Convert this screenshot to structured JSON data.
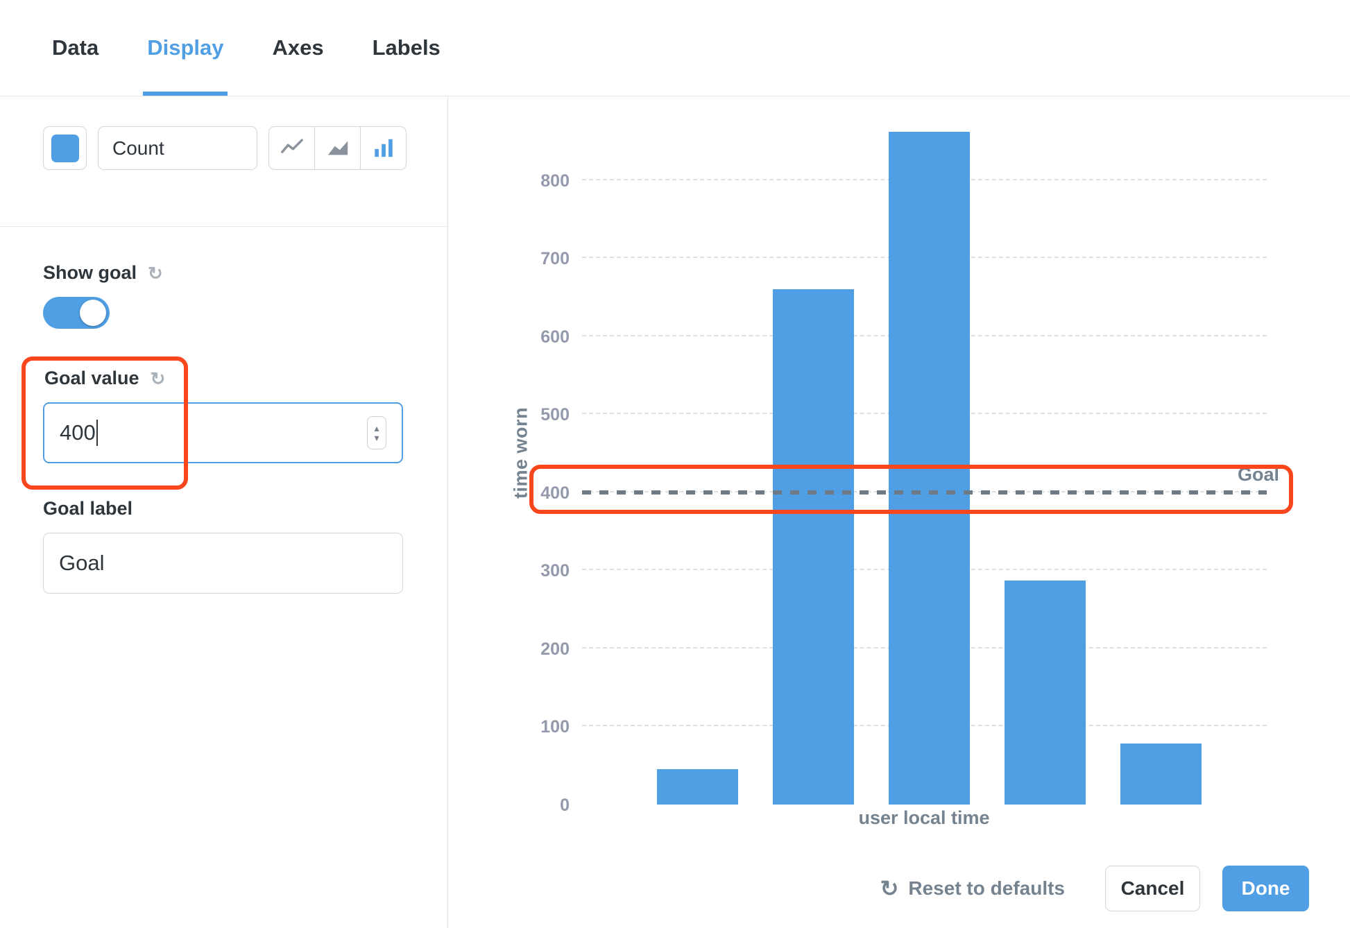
{
  "tabs": {
    "items": [
      {
        "label": "Data"
      },
      {
        "label": "Display"
      },
      {
        "label": "Axes"
      },
      {
        "label": "Labels"
      }
    ],
    "active": "Display"
  },
  "series": {
    "name": "Count",
    "chart_type_options": [
      "line",
      "area",
      "bar"
    ],
    "selected_chart_type": "bar"
  },
  "goal_settings": {
    "show_goal_label": "Show goal",
    "show_goal_enabled": true,
    "value_label": "Goal value",
    "value": "400",
    "label_label": "Goal label",
    "label_value": "Goal"
  },
  "icons": {
    "refresh": "↻",
    "stepper_up": "▴",
    "stepper_down": "▾"
  },
  "footer": {
    "reset": "Reset to defaults",
    "cancel": "Cancel",
    "done": "Done"
  },
  "colors": {
    "accent": "#509EE3",
    "annotation": "#F9461C",
    "goal_line": "#6E7A85",
    "grid": "#DCE1E6",
    "bar": "#509EE3"
  },
  "chart_data": {
    "type": "bar",
    "categories": [
      "",
      "",
      "",
      "",
      ""
    ],
    "values": [
      45,
      660,
      862,
      287,
      78
    ],
    "title": "",
    "xlabel": "user local time",
    "ylabel": "time worn",
    "ylim": [
      0,
      900
    ],
    "yticks": [
      0,
      100,
      200,
      300,
      400,
      500,
      600,
      700,
      800
    ],
    "grid": "dashed-horizontal",
    "legend": "none",
    "goal": {
      "value": 400,
      "label": "Goal"
    }
  }
}
